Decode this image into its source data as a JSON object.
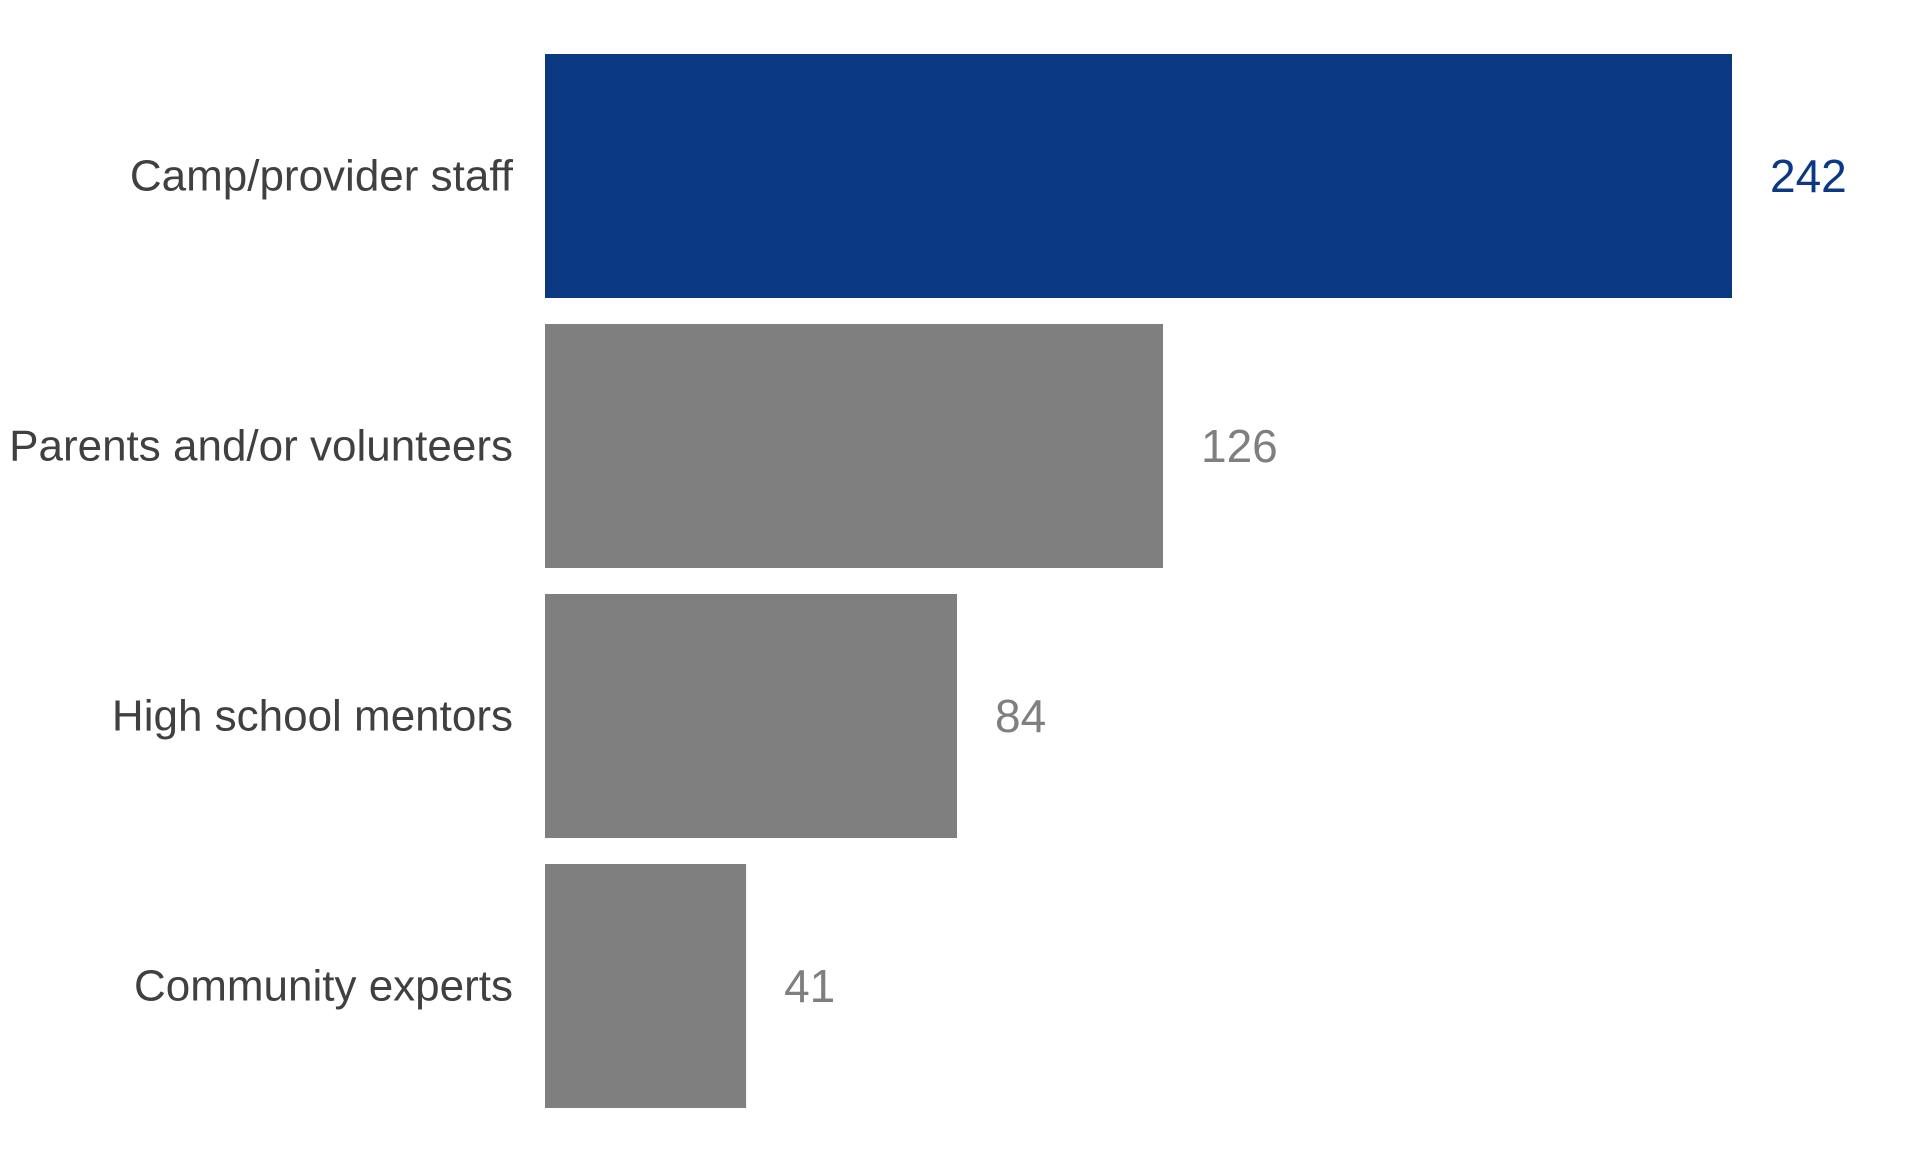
{
  "chart_data": {
    "type": "bar",
    "orientation": "horizontal",
    "title": "",
    "xlabel": "",
    "ylabel": "",
    "categories": [
      "Camp/provider staff",
      "Parents and/or volunteers",
      "High school mentors",
      "Community experts"
    ],
    "values": [
      242,
      126,
      84,
      41
    ],
    "xlim": [
      0,
      242
    ],
    "grid": false,
    "legend": "none",
    "colors": {
      "highlight": "#0a3882",
      "default": "#7f7f7f",
      "category_text": "#404040"
    },
    "highlight_index": 0
  }
}
